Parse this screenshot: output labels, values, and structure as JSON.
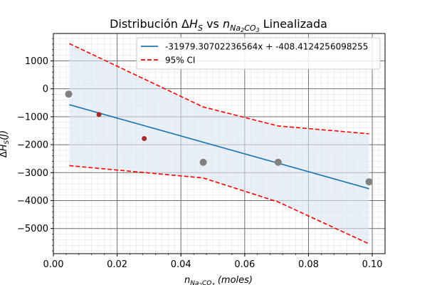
{
  "chart_data": {
    "type": "scatter",
    "title": "Distribución ΔH_S vs n_Na2CO3 Linealizada",
    "title_parts": {
      "pre": "Distribución ",
      "delta": "Δ",
      "h": "H",
      "h_sub": "S",
      "vs": " vs ",
      "n": "n",
      "n_sub_1": "Na",
      "n_sub_2": "2",
      "n_sub_3": "CO",
      "n_sub_4": "3",
      "post": " Linealizada"
    },
    "xlabel": "n_Na2CO3 (moles)",
    "xlabel_parts": {
      "n": "n",
      "sub_1": "Na",
      "sub_2": "2",
      "sub_3": "CO",
      "sub_4": "3",
      "units": "(moles)"
    },
    "ylabel": "ΔH_S(J)",
    "ylabel_parts": {
      "delta": "Δ",
      "h": "H",
      "sub": "S",
      "units": "(J)"
    },
    "xlim": [
      0.0,
      0.104
    ],
    "ylim": [
      -5900,
      1980
    ],
    "x_ticks": [
      0.0,
      0.02,
      0.04,
      0.06,
      0.08,
      0.1
    ],
    "x_tick_labels": [
      "0.00",
      "0.02",
      "0.04",
      "0.06",
      "0.08",
      "0.10"
    ],
    "y_ticks": [
      -5000,
      -4000,
      -3000,
      -2000,
      -1000,
      0,
      1000
    ],
    "y_tick_labels": [
      "−5000",
      "−4000",
      "−3000",
      "−2000",
      "−1000",
      "0",
      "1000"
    ],
    "grid": true,
    "minor_grid": true,
    "legend_position": "top-right",
    "series": [
      {
        "name": "-31979.30702236564x + -408.4124256098255",
        "kind": "line",
        "color": "#1f77b4",
        "x": [
          0.005,
          0.099
        ],
        "y": [
          -568.3,
          -3574.4
        ]
      },
      {
        "name": "95% CI",
        "kind": "dashed-band",
        "color": "#ff0000",
        "fill": "#dce6f2",
        "upper_x": [
          0.005,
          0.047,
          0.0705,
          0.099
        ],
        "upper_y": [
          1620,
          -650,
          -1330,
          -1610
        ],
        "lower_x": [
          0.005,
          0.047,
          0.0705,
          0.099
        ],
        "lower_y": [
          -2750,
          -3190,
          -4050,
          -5550
        ]
      },
      {
        "kind": "points",
        "color": "#808080",
        "size": 5,
        "x": [
          0.0048,
          0.047,
          0.0705,
          0.099
        ],
        "y": [
          -190,
          -2630,
          -2630,
          -3330
        ]
      },
      {
        "kind": "points",
        "color": "#a52a2a",
        "size": 3.5,
        "x": [
          0.0143,
          0.0285
        ],
        "y": [
          -920,
          -1780
        ]
      }
    ]
  }
}
